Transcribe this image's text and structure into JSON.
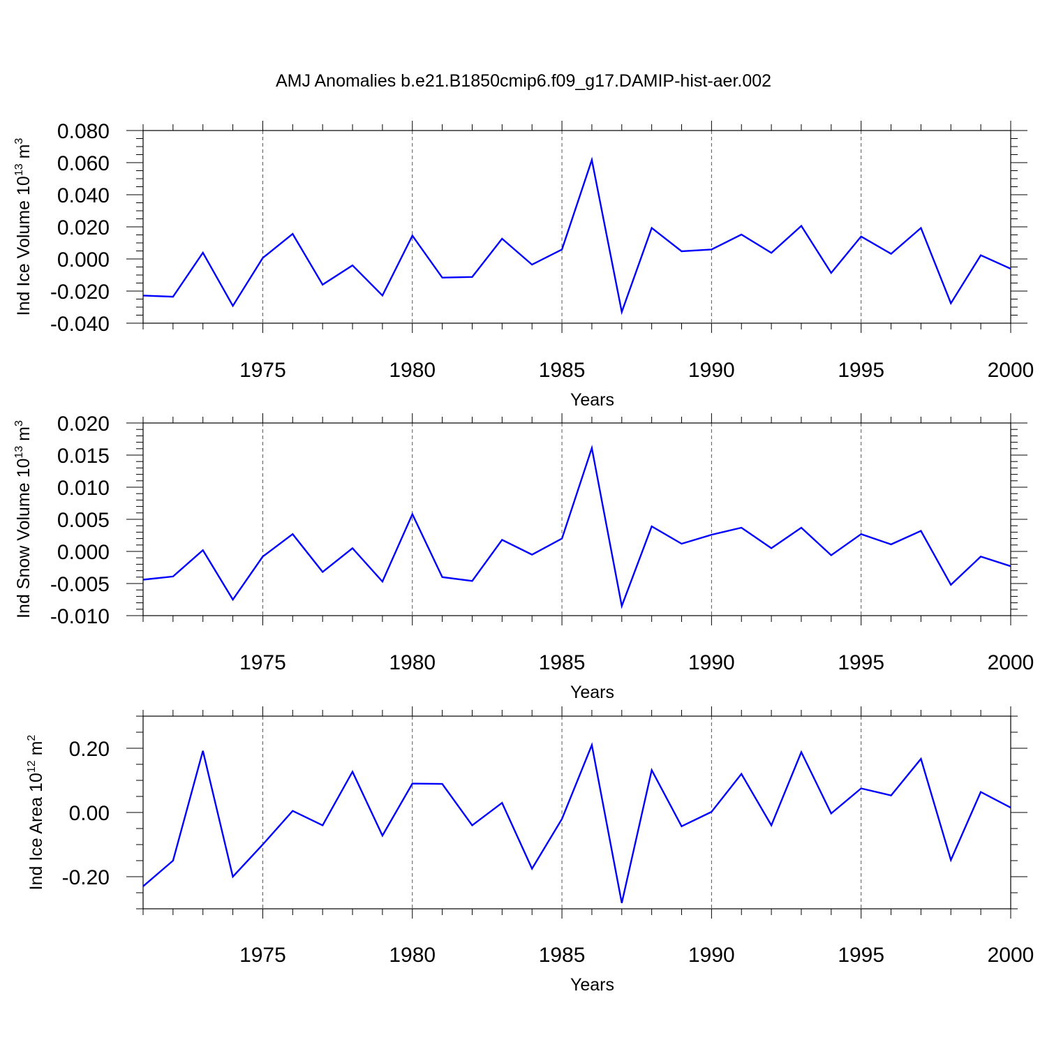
{
  "title": "AMJ Anomalies b.e21.B1850cmip6.f09_g17.DAMIP-hist-aer.002",
  "colors": {
    "line": "#0000ff",
    "axes": "#000000",
    "grid": "#555555"
  },
  "chart_data": [
    {
      "type": "line",
      "ylabel": {
        "main": "Ind Ice Volume 10",
        "sup": "13",
        "unit": " m",
        "unit_sup": "3"
      },
      "xlabel": "Years",
      "xlim": [
        1971,
        2000
      ],
      "ylim": [
        -0.04,
        0.08
      ],
      "y_ticks": [
        -0.04,
        -0.02,
        0.0,
        0.02,
        0.04,
        0.06,
        0.08
      ],
      "y_tick_labels": [
        "-0.040",
        "-0.020",
        "0.000",
        "0.020",
        "0.040",
        "0.060",
        "0.080"
      ],
      "y_minor_step": 0.005,
      "x_ticks": [
        1975,
        1980,
        1985,
        1990,
        1995,
        2000
      ],
      "x_tick_labels": [
        "1975",
        "1980",
        "1985",
        "1990",
        "1995",
        "2000"
      ],
      "grid": "vertical dashed at major x ticks",
      "x": [
        1971,
        1972,
        1973,
        1974,
        1975,
        1976,
        1977,
        1978,
        1979,
        1980,
        1981,
        1982,
        1983,
        1984,
        1985,
        1986,
        1987,
        1988,
        1989,
        1990,
        1991,
        1992,
        1993,
        1994,
        1995,
        1996,
        1997,
        1998,
        1999,
        2000
      ],
      "series": [
        {
          "values": [
            -0.0228,
            -0.0235,
            0.0039,
            -0.0292,
            0.0006,
            0.0156,
            -0.016,
            -0.004,
            -0.0228,
            0.0145,
            -0.0116,
            -0.0112,
            0.0126,
            -0.0035,
            0.0059,
            0.0617,
            -0.033,
            0.0193,
            0.0048,
            0.0059,
            0.0152,
            0.0038,
            0.0206,
            -0.0087,
            0.014,
            0.0032,
            0.0193,
            -0.0276,
            0.0023,
            -0.0061
          ]
        }
      ]
    },
    {
      "type": "line",
      "ylabel": {
        "main": "Ind Snow Volume 10",
        "sup": "13",
        "unit": " m",
        "unit_sup": "3"
      },
      "xlabel": "Years",
      "xlim": [
        1971,
        2000
      ],
      "ylim": [
        -0.01,
        0.02
      ],
      "y_ticks": [
        -0.01,
        -0.005,
        0.0,
        0.005,
        0.01,
        0.015,
        0.02
      ],
      "y_tick_labels": [
        "-0.010",
        "-0.005",
        "0.000",
        "0.005",
        "0.010",
        "0.015",
        "0.020"
      ],
      "y_minor_step": 0.001,
      "x_ticks": [
        1975,
        1980,
        1985,
        1990,
        1995,
        2000
      ],
      "x_tick_labels": [
        "1975",
        "1980",
        "1985",
        "1990",
        "1995",
        "2000"
      ],
      "grid": "vertical dashed at major x ticks",
      "x": [
        1971,
        1972,
        1973,
        1974,
        1975,
        1976,
        1977,
        1978,
        1979,
        1980,
        1981,
        1982,
        1983,
        1984,
        1985,
        1986,
        1987,
        1988,
        1989,
        1990,
        1991,
        1992,
        1993,
        1994,
        1995,
        1996,
        1997,
        1998,
        1999,
        2000
      ],
      "series": [
        {
          "values": [
            -0.0044,
            -0.0039,
            0.0002,
            -0.0075,
            -0.0008,
            0.0027,
            -0.0032,
            0.0005,
            -0.0047,
            0.0058,
            -0.004,
            -0.0046,
            0.0018,
            -0.0005,
            0.002,
            0.0161,
            -0.0085,
            0.0039,
            0.0012,
            0.0026,
            0.0037,
            0.0005,
            0.0037,
            -0.0006,
            0.0027,
            0.0011,
            0.0032,
            -0.0052,
            -0.0008,
            -0.0023
          ]
        }
      ]
    },
    {
      "type": "line",
      "ylabel": {
        "main": "Ind Ice Area 10",
        "sup": "12",
        "unit": " m",
        "unit_sup": "2"
      },
      "xlabel": "Years",
      "xlim": [
        1971,
        2000
      ],
      "ylim": [
        -0.3,
        0.3
      ],
      "y_ticks": [
        -0.2,
        0.0,
        0.2
      ],
      "y_tick_labels": [
        "-0.20",
        "0.00",
        "0.20"
      ],
      "y_minor_step": 0.05,
      "x_ticks": [
        1975,
        1980,
        1985,
        1990,
        1995,
        2000
      ],
      "x_tick_labels": [
        "1975",
        "1980",
        "1985",
        "1990",
        "1995",
        "2000"
      ],
      "grid": "vertical dashed at major x ticks",
      "x": [
        1971,
        1972,
        1973,
        1974,
        1975,
        1976,
        1977,
        1978,
        1979,
        1980,
        1981,
        1982,
        1983,
        1984,
        1985,
        1986,
        1987,
        1988,
        1989,
        1990,
        1991,
        1992,
        1993,
        1994,
        1995,
        1996,
        1997,
        1998,
        1999,
        2000
      ],
      "series": [
        {
          "values": [
            -0.23,
            -0.15,
            0.192,
            -0.2,
            -0.1,
            0.005,
            -0.04,
            0.127,
            -0.072,
            0.09,
            0.089,
            -0.04,
            0.03,
            -0.175,
            -0.02,
            0.21,
            -0.282,
            0.132,
            -0.043,
            0.002,
            0.12,
            -0.04,
            0.188,
            -0.003,
            0.075,
            0.053,
            0.167,
            -0.148,
            0.064,
            0.015
          ]
        }
      ]
    }
  ]
}
